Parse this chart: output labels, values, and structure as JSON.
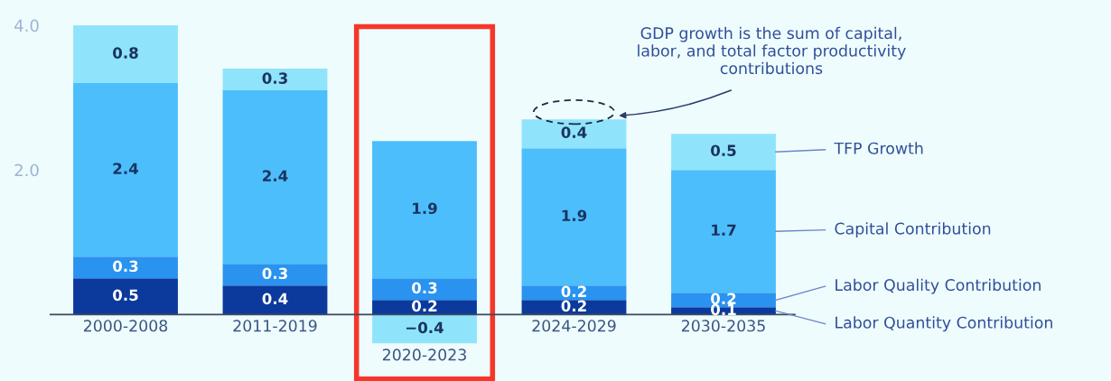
{
  "chart_data": {
    "type": "bar",
    "stacked": true,
    "categories": [
      "2000-2008",
      "2011-2019",
      "2020-2023",
      "2024-2029",
      "2030-2035"
    ],
    "series": [
      {
        "name": "Labor Quantity Contribution",
        "color": "#0b3a9c",
        "values": [
          0.5,
          0.4,
          0.2,
          0.2,
          0.1
        ]
      },
      {
        "name": "Labor Quality Contribution",
        "color": "#2a92ef",
        "values": [
          0.3,
          0.3,
          0.3,
          0.2,
          0.2
        ]
      },
      {
        "name": "Capital Contribution",
        "color": "#4cbefb",
        "values": [
          2.4,
          2.4,
          1.9,
          1.9,
          1.7
        ]
      },
      {
        "name": "TFP Growth",
        "color": "#8fe4fb",
        "values": [
          0.8,
          0.3,
          -0.4,
          0.4,
          0.5
        ]
      }
    ],
    "ylim": [
      -0.92,
      4.35
    ],
    "yticks": [
      {
        "value": 2,
        "label": "2.0"
      },
      {
        "value": 4,
        "label": "4.0"
      }
    ],
    "data_labels": true,
    "grid": false,
    "legend": "right",
    "annotations": [
      "GDP growth is the sum of capital,\nlabor, and total factor productivity\ncontributions"
    ]
  }
}
